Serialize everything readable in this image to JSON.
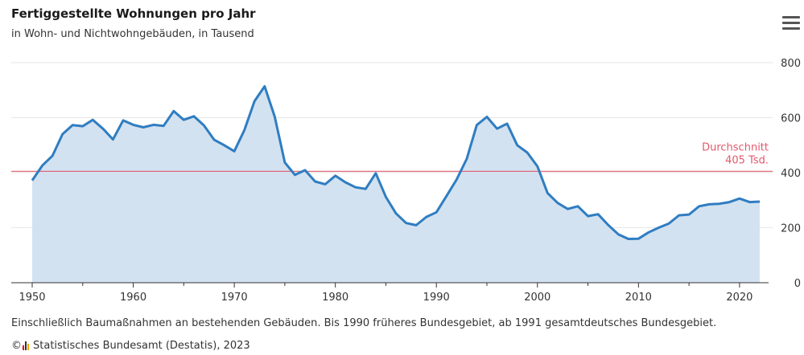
{
  "header": {
    "title": "Fertiggestellte Wohnungen pro Jahr",
    "subtitle": "in Wohn- und Nichtwohngebäuden, in Tausend",
    "menu_icon": "hamburger-menu-icon"
  },
  "footer": {
    "note": "Einschließlich Baumaßnahmen an bestehenden Gebäuden. Bis 1990 früheres Bundesgebiet, ab 1991 gesamtdeutsches Bundesgebiet.",
    "copyright": "©",
    "source": "Statistisches Bundesamt (Destatis), 2023",
    "logo_icon": "destatis-logo-icon"
  },
  "chart_data": {
    "type": "area",
    "title": "Fertiggestellte Wohnungen pro Jahr",
    "subtitle": "in Wohn- und Nichtwohngebäuden, in Tausend",
    "xlabel": "",
    "ylabel": "",
    "xlim": [
      1950,
      2022
    ],
    "ylim": [
      0,
      800
    ],
    "x_ticks": [
      1950,
      1960,
      1970,
      1980,
      1990,
      2000,
      2010,
      2020
    ],
    "y_ticks": [
      0,
      200,
      400,
      600,
      800
    ],
    "y_axis_side": "right",
    "grid": "horizontal",
    "colors": {
      "line": "#2f7dc1",
      "fill": "#d3e2f0",
      "average": "#e05a6d",
      "grid": "#e6e6e6"
    },
    "series": [
      {
        "x": [
          1950,
          1951,
          1952,
          1953,
          1954,
          1955,
          1956,
          1957,
          1958,
          1959,
          1960,
          1961,
          1962,
          1963,
          1964,
          1965,
          1966,
          1967,
          1968,
          1969,
          1970,
          1971,
          1972,
          1973,
          1974,
          1975,
          1976,
          1977,
          1978,
          1979,
          1980,
          1981,
          1982,
          1983,
          1984,
          1985,
          1986,
          1987,
          1988,
          1989,
          1990,
          1991,
          1992,
          1993,
          1994,
          1995,
          1996,
          1997,
          1998,
          1999,
          2000,
          2001,
          2002,
          2003,
          2004,
          2005,
          2006,
          2007,
          2008,
          2009,
          2010,
          2011,
          2012,
          2013,
          2014,
          2015,
          2016,
          2017,
          2018,
          2019,
          2020,
          2021,
          2022
        ],
        "values": [
          372,
          426,
          461,
          540,
          573,
          569,
          592,
          560,
          521,
          590,
          574,
          565,
          574,
          570,
          624,
          592,
          605,
          572,
          520,
          500,
          478,
          555,
          660,
          714,
          604,
          437,
          392,
          409,
          368,
          358,
          389,
          365,
          347,
          341,
          398,
          312,
          252,
          217,
          209,
          239,
          256,
          315,
          375,
          450,
          573,
          603,
          560,
          578,
          500,
          473,
          423,
          326,
          290,
          268,
          278,
          242,
          249,
          210,
          176,
          159,
          160,
          183,
          200,
          215,
          245,
          248,
          278,
          285,
          287,
          293,
          306,
          293,
          295
        ]
      }
    ],
    "average": {
      "value": 405,
      "label_line1": "Durchschnitt",
      "label_line2": "405 Tsd."
    }
  }
}
